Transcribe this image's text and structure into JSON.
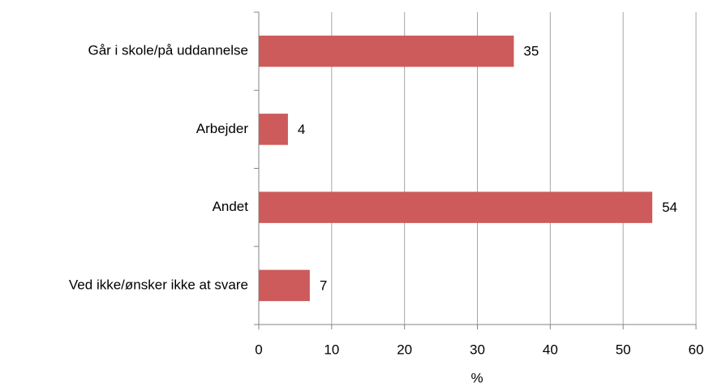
{
  "chart_data": {
    "type": "bar",
    "orientation": "horizontal",
    "categories": [
      "Går i skole/på uddannelse",
      "Arbejder",
      "Andet",
      "Ved ikke/ønsker ikke at svare"
    ],
    "values": [
      35,
      4,
      54,
      7
    ],
    "color": "#cd5b5b",
    "xlabel": "%",
    "xlim": [
      0,
      60
    ],
    "xticks": [
      0,
      10,
      20,
      30,
      40,
      50,
      60
    ],
    "grid": true
  }
}
